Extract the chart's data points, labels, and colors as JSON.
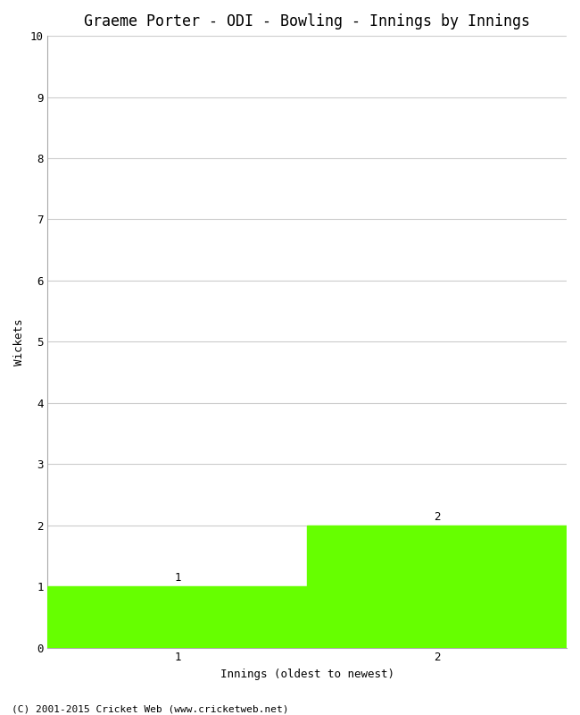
{
  "title": "Graeme Porter - ODI - Bowling - Innings by Innings",
  "xlabel": "Innings (oldest to newest)",
  "ylabel": "Wickets",
  "bar_positions": [
    1,
    2
  ],
  "bar_values": [
    1,
    2
  ],
  "bar_labels": [
    "1",
    "2"
  ],
  "bar_color": "#66ff00",
  "bar_width": 1.0,
  "ylim": [
    0,
    10
  ],
  "yticks": [
    0,
    1,
    2,
    3,
    4,
    5,
    6,
    7,
    8,
    9,
    10
  ],
  "xtick_labels": [
    "1",
    "2"
  ],
  "background_color": "#ffffff",
  "grid_color": "#cccccc",
  "footer_text": "(C) 2001-2015 Cricket Web (www.cricketweb.net)",
  "title_fontsize": 12,
  "axis_label_fontsize": 9,
  "tick_fontsize": 9,
  "annotation_fontsize": 9,
  "footer_fontsize": 8,
  "font_family": "monospace",
  "xlim": [
    0.5,
    2.5
  ]
}
